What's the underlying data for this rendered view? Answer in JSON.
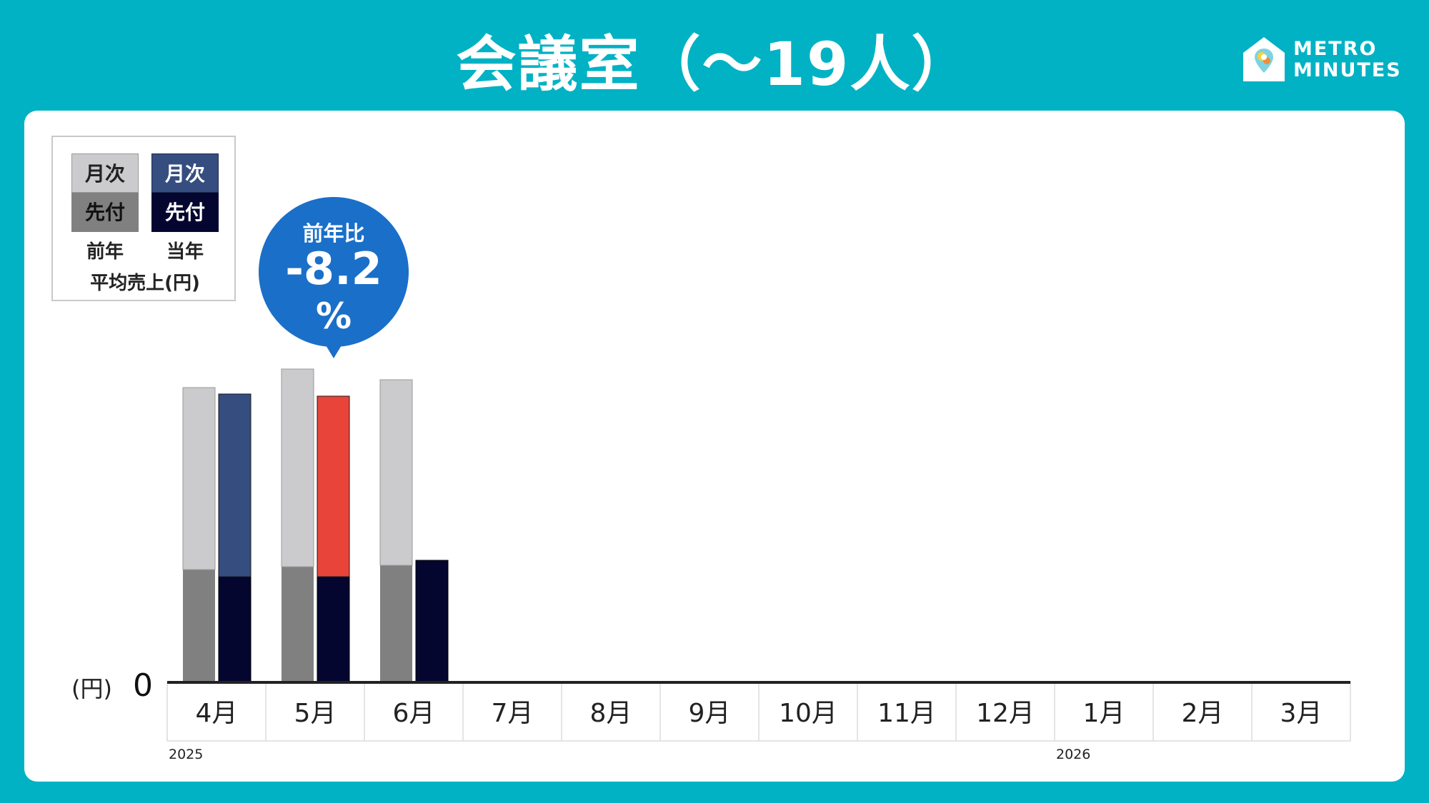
{
  "title": "会議室（～19人）",
  "logo": {
    "line1": "METRO",
    "line2": "MINUTES"
  },
  "legend": {
    "prev_monthly": "月次",
    "prev_advance": "先付",
    "curr_monthly": "月次",
    "curr_advance": "先付",
    "prev_caption": "前年",
    "curr_caption": "当年",
    "subtitle": "平均売上(円)"
  },
  "callout": {
    "label": "前年比",
    "value": "-8.2",
    "unit": "%"
  },
  "colors": {
    "background": "#00b2c4",
    "prev_monthly": "#cbcacc",
    "prev_advance": "#808080",
    "curr_monthly": "#364d80",
    "curr_monthly_highlight": "#e8443a",
    "curr_advance": "#040630",
    "callout": "#1a6fc9"
  },
  "chart_data": {
    "type": "bar",
    "stacked": true,
    "categories": [
      "4月",
      "5月",
      "6月",
      "7月",
      "8月",
      "9月",
      "10月",
      "11月",
      "12月",
      "1月",
      "2月",
      "3月"
    ],
    "year_labels": [
      {
        "category_index": 0,
        "text": "2025"
      },
      {
        "category_index": 9,
        "text": "2026"
      }
    ],
    "y_unit_label": "(円)",
    "y_zero_label": "0",
    "ylim": [
      0,
      415
    ],
    "series": [
      {
        "name": "前年 先付",
        "group": "前年",
        "values": [
          158,
          162,
          164,
          null,
          null,
          null,
          null,
          null,
          null,
          null,
          null,
          null
        ]
      },
      {
        "name": "前年 月次",
        "group": "前年",
        "values": [
          255,
          277,
          260,
          null,
          null,
          null,
          null,
          null,
          null,
          null,
          null,
          null
        ]
      },
      {
        "name": "当年 先付",
        "group": "当年",
        "values": [
          148,
          148,
          171,
          null,
          null,
          null,
          null,
          null,
          null,
          null,
          null,
          null
        ]
      },
      {
        "name": "当年 月次",
        "group": "当年",
        "values": [
          256,
          253,
          0,
          null,
          null,
          null,
          null,
          null,
          null,
          null,
          null,
          null
        ]
      }
    ],
    "highlight": {
      "series": "当年 月次",
      "category_index": 1
    },
    "grid": false,
    "legend_position": "top-left"
  }
}
